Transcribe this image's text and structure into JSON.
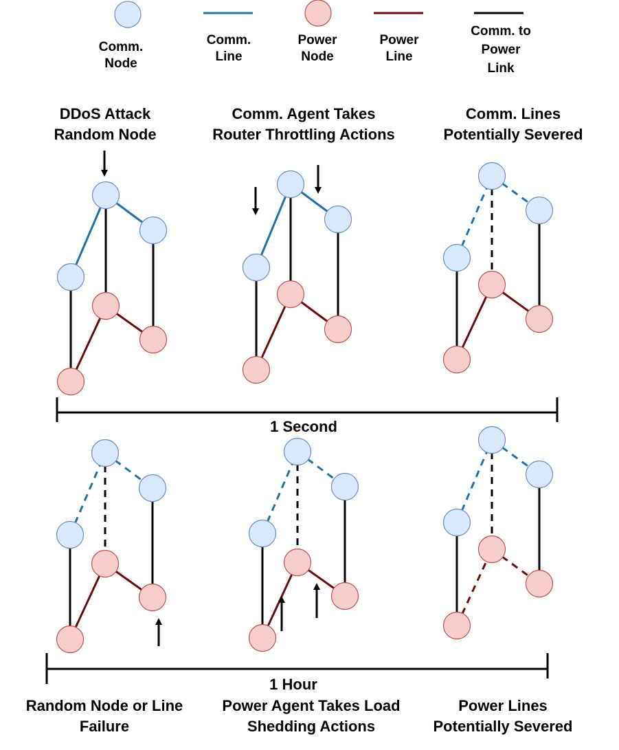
{
  "legend": {
    "comm_node": "Comm.\nNode",
    "comm_line": "Comm.\nLine",
    "power_node": "Power\nNode",
    "power_line": "Power\nLine",
    "comm_to_power_link": "Comm. to\nPower\nLink"
  },
  "top_row": {
    "titles": [
      "DDoS Attack\nRandom Node",
      "Comm. Agent Takes\nRouter Throttling Actions",
      "Comm. Lines\nPotentially Severed"
    ],
    "timeline_label": "1 Second"
  },
  "bottom_row": {
    "titles": [
      "Random Node or Line\nFailure",
      "Power Agent Takes Load\nShedding Actions",
      "Power Lines\nPotentially Severed"
    ],
    "timeline_label": "1 Hour"
  },
  "colors": {
    "comm_node_fill": "#dae8fc",
    "comm_node_stroke": "#6c8ebf",
    "power_node_fill": "#f8cecc",
    "power_node_stroke": "#b85450",
    "comm_line": "#1f6fa8",
    "power_line": "#6b0a0a",
    "link": "#000000"
  }
}
